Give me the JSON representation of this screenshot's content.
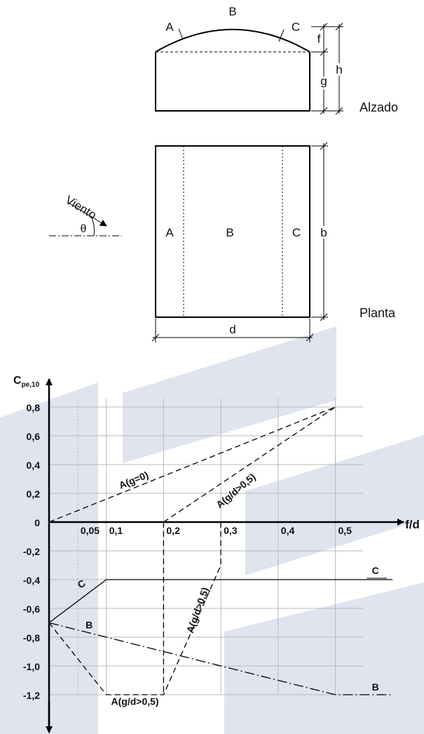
{
  "colors": {
    "watermark": "#dfe4ee",
    "grid": "#b9b9b9",
    "ink": "#000000"
  },
  "elevation": {
    "label": "Alzado",
    "zone_a": "A",
    "zone_b": "B",
    "zone_c": "C",
    "dim_f": "f",
    "dim_g": "g",
    "dim_h": "h"
  },
  "plan": {
    "label": "Planta",
    "zone_a": "A",
    "zone_b": "B",
    "zone_c": "C",
    "dim_b": "b",
    "dim_d": "d",
    "wind_label": "Viento",
    "angle_label": "θ"
  },
  "chart_data": {
    "type": "line",
    "ylabel": "C",
    "ylabel_sub": "pe,10",
    "xlabel": "f/d",
    "xlim": [
      0,
      0.5
    ],
    "ylim": [
      -1.2,
      0.8
    ],
    "x_ticks": [
      {
        "value": 0.05,
        "label": "0,05"
      },
      {
        "value": 0.1,
        "label": "0,1"
      },
      {
        "value": 0.2,
        "label": "0,2"
      },
      {
        "value": 0.3,
        "label": "0,3"
      },
      {
        "value": 0.4,
        "label": "0,4"
      },
      {
        "value": 0.5,
        "label": "0,5"
      }
    ],
    "y_ticks": [
      {
        "value": 0.8,
        "label": "0,8"
      },
      {
        "value": 0.6,
        "label": "0,6"
      },
      {
        "value": 0.4,
        "label": "0,4"
      },
      {
        "value": 0.2,
        "label": "0,2"
      },
      {
        "value": 0,
        "label": "0"
      },
      {
        "value": -0.2,
        "label": "-0,2"
      },
      {
        "value": -0.4,
        "label": "-0,4"
      },
      {
        "value": -0.6,
        "label": "-0,6"
      },
      {
        "value": -0.8,
        "label": "-0,8"
      },
      {
        "value": -1.0,
        "label": "-1,0"
      },
      {
        "value": -1.2,
        "label": "-1,2"
      }
    ],
    "grid": true,
    "series": [
      {
        "name": "A(g=0)",
        "style": "dashed",
        "x": [
          0,
          0.5
        ],
        "y": [
          0,
          0.8
        ]
      },
      {
        "name": "A(g/d>0,5)",
        "style": "dashed",
        "x": [
          0.2,
          0.5
        ],
        "y": [
          0,
          0.8
        ]
      },
      {
        "name": "A(g/d>0,5)",
        "style": "dashed",
        "x": [
          0.2,
          0.2
        ],
        "y": [
          0,
          -1.2
        ]
      },
      {
        "name": "A(g/d>0,5)",
        "style": "dashed",
        "x": [
          0,
          0.1,
          0.2,
          0.3,
          0.3
        ],
        "y": [
          -0.7,
          -1.2,
          -1.2,
          -0.3,
          0
        ]
      },
      {
        "name": "C",
        "style": "solid",
        "x": [
          0,
          0.1,
          0.6
        ],
        "y": [
          -0.7,
          -0.4,
          -0.4
        ]
      },
      {
        "name": "B",
        "style": "dashdot",
        "x": [
          0,
          0.5,
          0.6
        ],
        "y": [
          -0.7,
          -1.2,
          -1.2
        ]
      }
    ],
    "annotations": [
      {
        "text": "A(g=0)",
        "x": 0.15,
        "y": 0.27
      },
      {
        "text": "A(g/d>0,5)",
        "x": 0.33,
        "y": 0.2
      },
      {
        "text": "A(g/d>0,5)",
        "x": 0.265,
        "y": -0.62
      },
      {
        "text": "A(g/d>0,5)",
        "x": 0.15,
        "y": -1.27
      },
      {
        "text": "C",
        "x": 0.06,
        "y": -0.45
      },
      {
        "text": "B",
        "x": 0.07,
        "y": -0.74
      },
      {
        "text": "C",
        "x": 0.57,
        "y": -0.36
      },
      {
        "text": "B",
        "x": 0.57,
        "y": -1.17
      }
    ]
  }
}
